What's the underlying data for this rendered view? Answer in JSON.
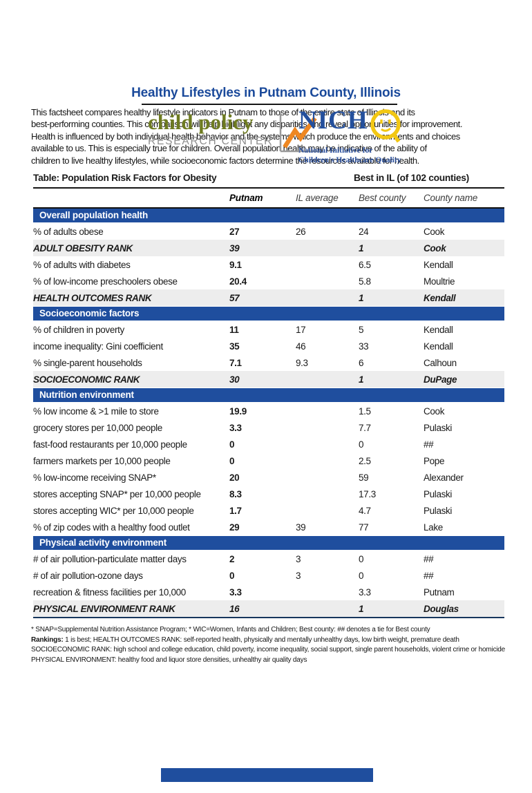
{
  "page": {
    "title": "Healthy Lifestyles in Putnam County, Illinois",
    "intro_lines": [
      "This factsheet compares healthy lifestyle indicators in Putnam to those of the entire state of Illinois and its",
      "best-performing counties. This comparison will help highlight any disparities and reveal opportunities for improvement.",
      "Health is influenced by both individual health behavior and the systems which produce the environments and choices",
      "available to us. This is especially true for children. Overall population health may be indicative of the ability of",
      "children to live healthy lifestyles, while socioeconomic factors determine the resources available for health."
    ]
  },
  "header": {
    "cprc_logo": {
      "line1": "child policy",
      "line2": "RESEARCH CENTER",
      "icon": "line-chart-icon"
    },
    "nichq_logo": {
      "name": "NICH",
      "q_icon": "smiley-face-q-icon",
      "tagline_line1": "National Initiative for",
      "tagline_line2": "Children's Healthcare Quality"
    }
  },
  "table": {
    "caption_left": "Table: Population Risk Factors for Obesity",
    "caption_right": "Best in IL (of 102 counties)",
    "columns": [
      "Putnam",
      "IL average",
      "Best county",
      "County name"
    ],
    "sections": [
      {
        "title": "Overall population health",
        "rows": [
          {
            "label": "% of adults obese",
            "putnam": "27",
            "il": "26",
            "best": "24",
            "county": "Cook",
            "rank": false
          },
          {
            "label": "ADULT OBESITY RANK",
            "putnam": "39",
            "il": "",
            "best": "1",
            "county": "Cook",
            "rank": true
          },
          {
            "label": "% of adults with diabetes",
            "putnam": "9.1",
            "il": "",
            "best": "6.5",
            "county": "Kendall",
            "rank": false
          },
          {
            "label": "% of low-income preschoolers obese",
            "putnam": "20.4",
            "il": "",
            "best": "5.8",
            "county": "Moultrie",
            "rank": false
          },
          {
            "label": "HEALTH OUTCOMES RANK",
            "putnam": "57",
            "il": "",
            "best": "1",
            "county": "Kendall",
            "rank": true
          }
        ]
      },
      {
        "title": "Socioeconomic factors",
        "rows": [
          {
            "label": "% of children in poverty",
            "putnam": "11",
            "il": "17",
            "best": "5",
            "county": "Kendall",
            "rank": false
          },
          {
            "label": "income inequality: Gini coefficient",
            "putnam": "35",
            "il": "46",
            "best": "33",
            "county": "Kendall",
            "rank": false
          },
          {
            "label": "% single-parent households",
            "putnam": "7.1",
            "il": "9.3",
            "best": "6",
            "county": "Calhoun",
            "rank": false
          },
          {
            "label": "SOCIOECONOMIC RANK",
            "putnam": "30",
            "il": "",
            "best": "1",
            "county": "DuPage",
            "rank": true
          }
        ]
      },
      {
        "title": "Nutrition environment",
        "rows": [
          {
            "label": "% low income & >1 mile to store",
            "putnam": "19.9",
            "il": "",
            "best": "1.5",
            "county": "Cook",
            "rank": false
          },
          {
            "label": "grocery stores per 10,000 people",
            "putnam": "3.3",
            "il": "",
            "best": "7.7",
            "county": "Pulaski",
            "rank": false
          },
          {
            "label": "fast-food restaurants per 10,000 people",
            "putnam": "0",
            "il": "",
            "best": "0",
            "county": "##",
            "rank": false
          },
          {
            "label": "farmers markets per 10,000 people",
            "putnam": "0",
            "il": "",
            "best": "2.5",
            "county": "Pope",
            "rank": false
          },
          {
            "label": "% low-income receiving SNAP*",
            "putnam": "20",
            "il": "",
            "best": "59",
            "county": "Alexander",
            "rank": false
          },
          {
            "label": "stores accepting SNAP* per 10,000 people",
            "putnam": "8.3",
            "il": "",
            "best": "17.3",
            "county": "Pulaski",
            "rank": false
          },
          {
            "label": "stores accepting WIC* per 10,000 people",
            "putnam": "1.7",
            "il": "",
            "best": "4.7",
            "county": "Pulaski",
            "rank": false
          },
          {
            "label": "% of zip codes with a healthy food outlet",
            "putnam": "29",
            "il": "39",
            "best": "77",
            "county": "Lake",
            "rank": false
          }
        ]
      },
      {
        "title": "Physical activity environment",
        "rows": [
          {
            "label": "# of air pollution-particulate matter days",
            "putnam": "2",
            "il": "3",
            "best": "0",
            "county": "##",
            "rank": false
          },
          {
            "label": "# of air pollution-ozone days",
            "putnam": "0",
            "il": "3",
            "best": "0",
            "county": "##",
            "rank": false
          },
          {
            "label": "recreation & fitness facilities per 10,000",
            "putnam": "3.3",
            "il": "",
            "best": "3.3",
            "county": "Putnam",
            "rank": false
          },
          {
            "label": "PHYSICAL ENVIRONMENT RANK",
            "putnam": "16",
            "il": "",
            "best": "1",
            "county": "Douglas",
            "rank": true
          }
        ]
      }
    ]
  },
  "footnotes": {
    "line1": "* SNAP=Supplemental Nutrition Assistance Program; * WIC=Women, Infants and Children; Best county: ## denotes a tie for Best county",
    "line2_bold": "Rankings:",
    "line2_rest": "  1 is best; HEALTH OUTCOMES RANK: self-reported health, physically and mentally unhealthy days, low birth weight, premature death",
    "line3": "SOCIOECONOMIC RANK: high school and college education, child poverty, income inequality, social support, single parent households, violent crime or homicide",
    "line4": "PHYSICAL ENVIRONMENT: healthy food and liquor store densities, unhealthy air quality days"
  },
  "colors": {
    "accent_blue": "#1f4e9e",
    "title_blue": "#1b4a9b",
    "rank_row_bg": "#ededed",
    "logo_olive_green": "#6e7b21",
    "logo_gray": "#8e8e8e",
    "logo_orange": "#ee8722",
    "nichq_blue": "#24509d",
    "nichq_yellow": "#f2c713"
  }
}
